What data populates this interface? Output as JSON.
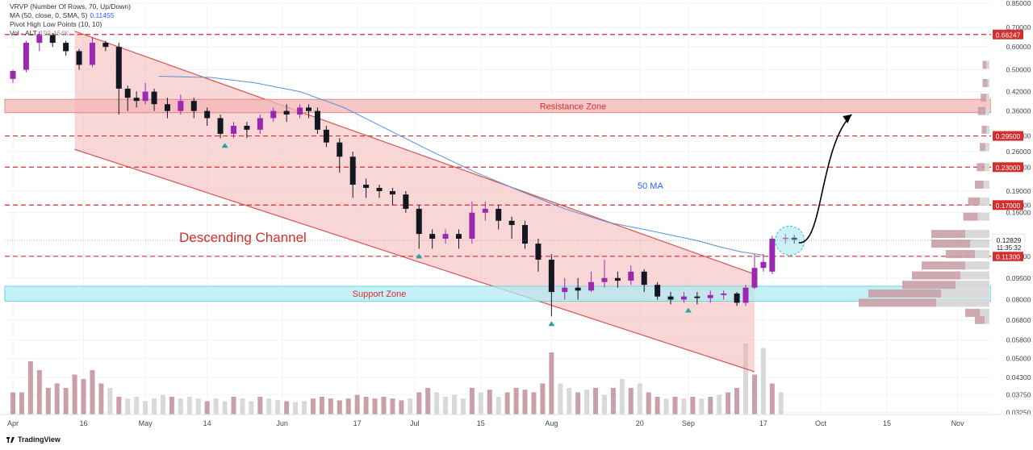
{
  "indicators": {
    "vrvp": "VRVP (Number Of Rows, 70, Up/Down)",
    "ma_label": "MA (50, close, 0, SMA, 5)",
    "ma_value": "0.11455",
    "pivot": "Pivot High Low Points (10, 10)",
    "vol_label": "Vol · ALT",
    "vol_value": "199.464K"
  },
  "brand": "TradingView",
  "colors": {
    "up": "#9c27b0",
    "down": "#131722",
    "channel_fill": "#f4a6a6",
    "channel_line": "#d9534f",
    "resistance": "#f3b5b5",
    "support": "#b2ebf2",
    "dashed": "#d32f2f",
    "ma": "#5b8fd4",
    "vol_up": "#c9a0a8",
    "vol_down": "#d9d9d9"
  },
  "chart_data": {
    "type": "candlestick",
    "title": "",
    "scale": "log",
    "ylim": [
      0.032,
      0.85
    ],
    "y_ticks": [
      "0.85000",
      "0.70000",
      "0.60000",
      "0.50000",
      "0.42000",
      "0.36000",
      "0.29500",
      "0.26000",
      "0.23000",
      "0.19000",
      "0.17000",
      "0.16000",
      "0.11300",
      "0.09500",
      "0.08000",
      "0.06800",
      "0.05800",
      "0.05000",
      "0.04300",
      "0.03750",
      "0.03250"
    ],
    "price_labels": [
      {
        "value": 0.66247,
        "text": "0.66247"
      },
      {
        "value": 0.295,
        "text": "0.29500"
      },
      {
        "value": 0.23,
        "text": "0.23000"
      },
      {
        "value": 0.17,
        "text": "0.17000"
      },
      {
        "value": 0.113,
        "text": "0.11300"
      }
    ],
    "current_price": {
      "value": 0.12829,
      "text": "0.12829",
      "timer": "11:35:32"
    },
    "x_ticks": [
      "Apr",
      "16",
      "May",
      "14",
      "Jun",
      "17",
      "Jul",
      "15",
      "Aug",
      "20",
      "Sep",
      "17",
      "Oct",
      "15",
      "Nov"
    ],
    "x_tick_days": [
      0,
      16,
      30,
      44,
      61,
      78,
      91,
      106,
      122,
      142,
      153,
      170,
      183,
      198,
      214
    ],
    "date_start": "2023-04-01",
    "dashed_levels": [
      0.66247,
      0.295,
      0.23,
      0.17,
      0.113
    ],
    "zones": [
      {
        "name": "Resistance Zone",
        "low": 0.355,
        "high": 0.395
      },
      {
        "name": "Support Zone",
        "low": 0.079,
        "high": 0.089
      }
    ],
    "channel": {
      "label": "Descending Channel",
      "upper": [
        {
          "day": 14,
          "price": 0.68
        },
        {
          "day": 168,
          "price": 0.098
        }
      ],
      "lower": [
        {
          "day": 14,
          "price": 0.265
        },
        {
          "day": 168,
          "price": 0.045
        }
      ]
    },
    "ma_label": "50 MA",
    "ma": [
      [
        33,
        0.475
      ],
      [
        45,
        0.47
      ],
      [
        55,
        0.45
      ],
      [
        65,
        0.42
      ],
      [
        75,
        0.37
      ],
      [
        85,
        0.31
      ],
      [
        95,
        0.26
      ],
      [
        105,
        0.22
      ],
      [
        115,
        0.19
      ],
      [
        125,
        0.165
      ],
      [
        135,
        0.148
      ],
      [
        145,
        0.138
      ],
      [
        155,
        0.128
      ],
      [
        160,
        0.122
      ],
      [
        165,
        0.117
      ],
      [
        170,
        0.114
      ]
    ],
    "candles": [
      [
        0,
        0.465,
        0.495,
        0.45,
        0.5
      ],
      [
        3,
        0.5,
        0.62,
        0.49,
        0.63
      ],
      [
        6,
        0.62,
        0.66,
        0.58,
        0.68
      ],
      [
        9,
        0.66,
        0.62,
        0.6,
        0.67
      ],
      [
        12,
        0.62,
        0.58,
        0.56,
        0.63
      ],
      [
        15,
        0.58,
        0.52,
        0.5,
        0.59
      ],
      [
        18,
        0.52,
        0.62,
        0.51,
        0.65
      ],
      [
        21,
        0.62,
        0.6,
        0.58,
        0.63
      ],
      [
        24,
        0.6,
        0.43,
        0.35,
        0.62
      ],
      [
        26,
        0.43,
        0.4,
        0.36,
        0.44
      ],
      [
        28,
        0.4,
        0.39,
        0.37,
        0.42
      ],
      [
        30,
        0.39,
        0.42,
        0.38,
        0.45
      ],
      [
        32,
        0.42,
        0.38,
        0.36,
        0.43
      ],
      [
        35,
        0.38,
        0.36,
        0.34,
        0.4
      ],
      [
        38,
        0.36,
        0.39,
        0.35,
        0.41
      ],
      [
        41,
        0.39,
        0.36,
        0.34,
        0.4
      ],
      [
        44,
        0.36,
        0.34,
        0.32,
        0.37
      ],
      [
        47,
        0.34,
        0.3,
        0.29,
        0.35
      ],
      [
        50,
        0.3,
        0.32,
        0.29,
        0.33
      ],
      [
        53,
        0.32,
        0.31,
        0.29,
        0.33
      ],
      [
        56,
        0.31,
        0.34,
        0.3,
        0.35
      ],
      [
        59,
        0.34,
        0.36,
        0.33,
        0.37
      ],
      [
        62,
        0.36,
        0.35,
        0.33,
        0.38
      ],
      [
        65,
        0.35,
        0.37,
        0.34,
        0.38
      ],
      [
        67,
        0.37,
        0.36,
        0.34,
        0.38
      ],
      [
        69,
        0.36,
        0.31,
        0.3,
        0.37
      ],
      [
        71,
        0.31,
        0.28,
        0.27,
        0.32
      ],
      [
        74,
        0.28,
        0.25,
        0.22,
        0.29
      ],
      [
        77,
        0.25,
        0.2,
        0.18,
        0.26
      ],
      [
        80,
        0.2,
        0.195,
        0.18,
        0.21
      ],
      [
        83,
        0.195,
        0.19,
        0.18,
        0.2
      ],
      [
        86,
        0.19,
        0.185,
        0.17,
        0.195
      ],
      [
        89,
        0.185,
        0.165,
        0.16,
        0.19
      ],
      [
        92,
        0.165,
        0.135,
        0.12,
        0.17
      ],
      [
        95,
        0.135,
        0.13,
        0.12,
        0.14
      ],
      [
        98,
        0.13,
        0.135,
        0.125,
        0.14
      ],
      [
        101,
        0.135,
        0.13,
        0.12,
        0.14
      ],
      [
        104,
        0.13,
        0.16,
        0.125,
        0.175
      ],
      [
        107,
        0.16,
        0.165,
        0.15,
        0.175
      ],
      [
        110,
        0.165,
        0.15,
        0.14,
        0.17
      ],
      [
        113,
        0.15,
        0.145,
        0.13,
        0.155
      ],
      [
        116,
        0.145,
        0.125,
        0.12,
        0.15
      ],
      [
        119,
        0.125,
        0.11,
        0.1,
        0.13
      ],
      [
        122,
        0.11,
        0.085,
        0.07,
        0.115
      ],
      [
        125,
        0.085,
        0.088,
        0.08,
        0.095
      ],
      [
        128,
        0.088,
        0.086,
        0.08,
        0.095
      ],
      [
        131,
        0.086,
        0.092,
        0.085,
        0.1
      ],
      [
        134,
        0.092,
        0.095,
        0.088,
        0.11
      ],
      [
        137,
        0.095,
        0.093,
        0.088,
        0.1
      ],
      [
        140,
        0.093,
        0.1,
        0.09,
        0.105
      ],
      [
        143,
        0.1,
        0.09,
        0.085,
        0.102
      ],
      [
        146,
        0.09,
        0.082,
        0.08,
        0.092
      ],
      [
        149,
        0.082,
        0.08,
        0.077,
        0.085
      ],
      [
        152,
        0.08,
        0.082,
        0.078,
        0.085
      ],
      [
        155,
        0.082,
        0.081,
        0.077,
        0.085
      ],
      [
        158,
        0.081,
        0.083,
        0.078,
        0.086
      ],
      [
        161,
        0.083,
        0.084,
        0.08,
        0.086
      ],
      [
        164,
        0.084,
        0.078,
        0.076,
        0.085
      ],
      [
        166,
        0.078,
        0.088,
        0.076,
        0.09
      ],
      [
        168,
        0.088,
        0.103,
        0.087,
        0.115
      ],
      [
        170,
        0.103,
        0.108,
        0.1,
        0.115
      ],
      [
        172,
        0.1,
        0.13,
        0.098,
        0.133
      ],
      [
        175,
        0.13,
        0.131,
        0.125,
        0.135
      ],
      [
        177,
        0.131,
        0.129,
        0.125,
        0.134
      ]
    ],
    "volume": [
      [
        0,
        0.25
      ],
      [
        2,
        0.25
      ],
      [
        4,
        0.6
      ],
      [
        6,
        0.5
      ],
      [
        8,
        0.3
      ],
      [
        10,
        0.35
      ],
      [
        12,
        0.3
      ],
      [
        14,
        0.45
      ],
      [
        16,
        0.4
      ],
      [
        18,
        0.5
      ],
      [
        20,
        0.35
      ],
      [
        22,
        0.3
      ],
      [
        24,
        0.2
      ],
      [
        26,
        0.18
      ],
      [
        28,
        0.2
      ],
      [
        30,
        0.15
      ],
      [
        32,
        0.18
      ],
      [
        34,
        0.22
      ],
      [
        36,
        0.2
      ],
      [
        38,
        0.18
      ],
      [
        40,
        0.2
      ],
      [
        42,
        0.18
      ],
      [
        44,
        0.15
      ],
      [
        46,
        0.18
      ],
      [
        48,
        0.15
      ],
      [
        50,
        0.2
      ],
      [
        52,
        0.18
      ],
      [
        54,
        0.15
      ],
      [
        56,
        0.2
      ],
      [
        58,
        0.18
      ],
      [
        60,
        0.16
      ],
      [
        62,
        0.15
      ],
      [
        64,
        0.14
      ],
      [
        66,
        0.15
      ],
      [
        68,
        0.18
      ],
      [
        70,
        0.2
      ],
      [
        72,
        0.18
      ],
      [
        74,
        0.16
      ],
      [
        76,
        0.18
      ],
      [
        78,
        0.22
      ],
      [
        80,
        0.2
      ],
      [
        82,
        0.18
      ],
      [
        84,
        0.2
      ],
      [
        86,
        0.18
      ],
      [
        88,
        0.16
      ],
      [
        90,
        0.18
      ],
      [
        92,
        0.25
      ],
      [
        94,
        0.3
      ],
      [
        96,
        0.25
      ],
      [
        98,
        0.2
      ],
      [
        100,
        0.22
      ],
      [
        102,
        0.18
      ],
      [
        104,
        0.3
      ],
      [
        106,
        0.25
      ],
      [
        108,
        0.28
      ],
      [
        110,
        0.2
      ],
      [
        112,
        0.25
      ],
      [
        114,
        0.3
      ],
      [
        116,
        0.28
      ],
      [
        118,
        0.25
      ],
      [
        120,
        0.35
      ],
      [
        122,
        0.7
      ],
      [
        124,
        0.35
      ],
      [
        126,
        0.3
      ],
      [
        128,
        0.25
      ],
      [
        130,
        0.28
      ],
      [
        132,
        0.3
      ],
      [
        134,
        0.22
      ],
      [
        136,
        0.3
      ],
      [
        138,
        0.4
      ],
      [
        140,
        0.3
      ],
      [
        142,
        0.35
      ],
      [
        144,
        0.25
      ],
      [
        146,
        0.2
      ],
      [
        148,
        0.18
      ],
      [
        150,
        0.2
      ],
      [
        152,
        0.18
      ],
      [
        154,
        0.2
      ],
      [
        156,
        0.18
      ],
      [
        158,
        0.2
      ],
      [
        160,
        0.22
      ],
      [
        162,
        0.25
      ],
      [
        164,
        0.3
      ],
      [
        166,
        0.8
      ],
      [
        168,
        0.45
      ],
      [
        170,
        0.75
      ],
      [
        172,
        0.35
      ],
      [
        174,
        0.25
      ]
    ],
    "volume_up_days": [
      0,
      2,
      4,
      6,
      8,
      10,
      12,
      14,
      16,
      18,
      20,
      24,
      36,
      44,
      50,
      56,
      62,
      68,
      70,
      72,
      74,
      76,
      78,
      80,
      82,
      84,
      86,
      88,
      92,
      94,
      104,
      108,
      112,
      114,
      116,
      118,
      120,
      122,
      128,
      132,
      136,
      140,
      144,
      146,
      150,
      154,
      158,
      162,
      164,
      168,
      172
    ],
    "volume_profile": [
      {
        "price": 0.52,
        "up": 0.04,
        "down": 0.03
      },
      {
        "price": 0.45,
        "up": 0.05,
        "down": 0.02
      },
      {
        "price": 0.4,
        "up": 0.06,
        "down": 0.03
      },
      {
        "price": 0.36,
        "up": 0.08,
        "down": 0.04
      },
      {
        "price": 0.31,
        "up": 0.05,
        "down": 0.03
      },
      {
        "price": 0.27,
        "up": 0.06,
        "down": 0.04
      },
      {
        "price": 0.23,
        "up": 0.08,
        "down": 0.05
      },
      {
        "price": 0.2,
        "up": 0.09,
        "down": 0.06
      },
      {
        "price": 0.175,
        "up": 0.12,
        "down": 0.1
      },
      {
        "price": 0.155,
        "up": 0.15,
        "down": 0.12
      },
      {
        "price": 0.135,
        "up": 0.35,
        "down": 0.25
      },
      {
        "price": 0.125,
        "up": 0.4,
        "down": 0.2
      },
      {
        "price": 0.115,
        "up": 0.3,
        "down": 0.15
      },
      {
        "price": 0.105,
        "up": 0.45,
        "down": 0.25
      },
      {
        "price": 0.097,
        "up": 0.5,
        "down": 0.3
      },
      {
        "price": 0.09,
        "up": 0.55,
        "down": 0.35
      },
      {
        "price": 0.084,
        "up": 0.75,
        "down": 0.5
      },
      {
        "price": 0.078,
        "up": 0.8,
        "down": 0.55
      },
      {
        "price": 0.072,
        "up": 0.15,
        "down": 0.1
      },
      {
        "price": 0.068,
        "up": 0.1,
        "down": 0.05
      }
    ],
    "pivot_low_days": [
      48,
      92,
      122,
      153
    ],
    "projection": {
      "from": [
        178,
        0.126
      ],
      "to": [
        190,
        0.35
      ]
    }
  }
}
